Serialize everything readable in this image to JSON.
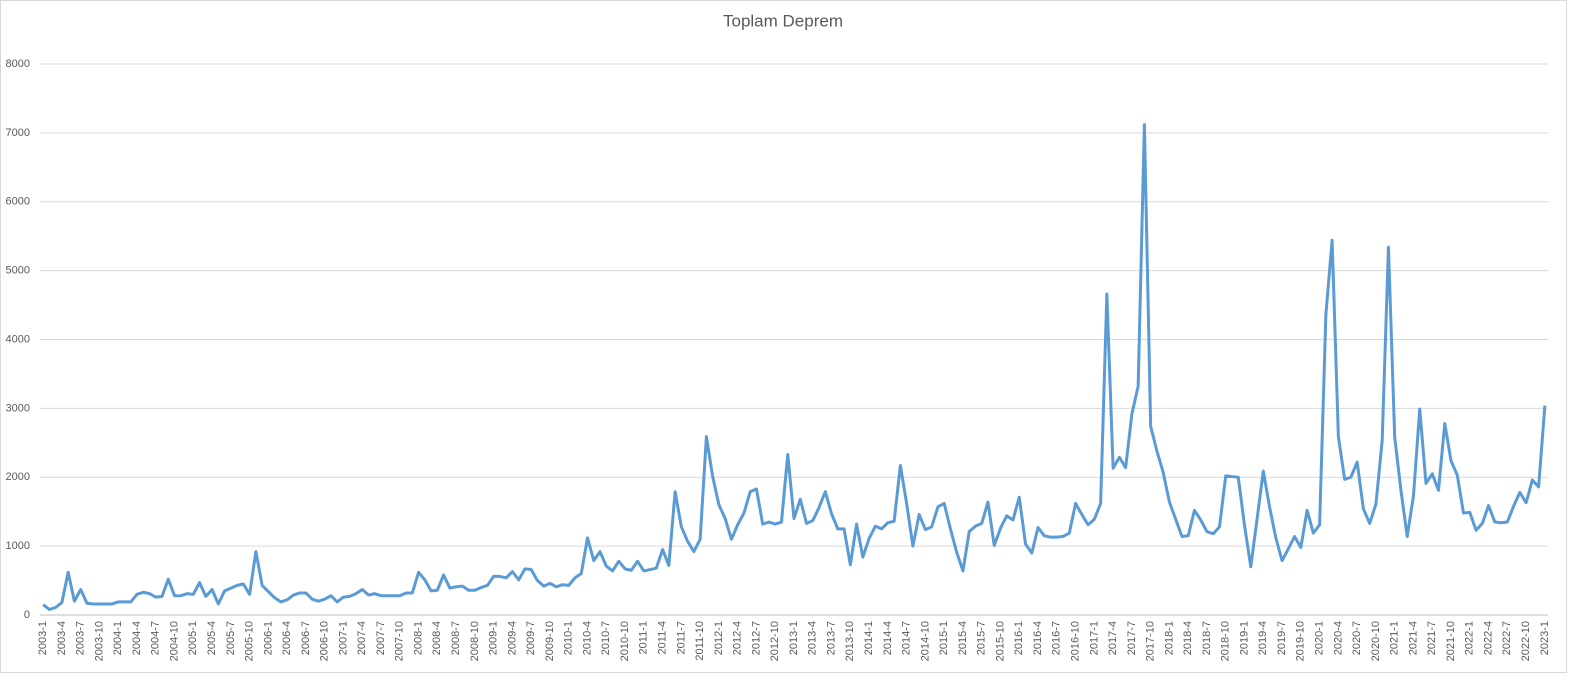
{
  "chart_data": {
    "type": "line",
    "title": "Toplam Deprem",
    "categories": [
      "2003-1",
      null,
      null,
      "2003-4",
      null,
      null,
      "2003-7",
      null,
      null,
      "2003-10",
      null,
      null,
      "2004-1",
      null,
      null,
      "2004-4",
      null,
      null,
      "2004-7",
      null,
      null,
      "2004-10",
      null,
      null,
      "2005-1",
      null,
      null,
      "2005-4",
      null,
      null,
      "2005-7",
      null,
      null,
      "2005-10",
      null,
      null,
      "2006-1",
      null,
      null,
      "2006-4",
      null,
      null,
      "2006-7",
      null,
      null,
      "2006-10",
      null,
      null,
      "2007-1",
      null,
      null,
      "2007-4",
      null,
      null,
      "2007-7",
      null,
      null,
      "2007-10",
      null,
      null,
      "2008-1",
      null,
      null,
      "2008-4",
      null,
      null,
      "2008-7",
      null,
      null,
      "2008-10",
      null,
      null,
      "2009-1",
      null,
      null,
      "2009-4",
      null,
      null,
      "2009-7",
      null,
      null,
      "2009-10",
      null,
      null,
      "2010-1",
      null,
      null,
      "2010-4",
      null,
      null,
      "2010-7",
      null,
      null,
      "2010-10",
      null,
      null,
      "2011-1",
      null,
      null,
      "2011-4",
      null,
      null,
      "2011-7",
      null,
      null,
      "2011-10",
      null,
      null,
      "2012-1",
      null,
      null,
      "2012-4",
      null,
      null,
      "2012-7",
      null,
      null,
      "2012-10",
      null,
      null,
      "2013-1",
      null,
      null,
      "2013-4",
      null,
      null,
      "2013-7",
      null,
      null,
      "2013-10",
      null,
      null,
      "2014-1",
      null,
      null,
      "2014-4",
      null,
      null,
      "2014-7",
      null,
      null,
      "2014-10",
      null,
      null,
      "2015-1",
      null,
      null,
      "2015-4",
      null,
      null,
      "2015-7",
      null,
      null,
      "2015-10",
      null,
      null,
      "2016-1",
      null,
      null,
      "2016-4",
      null,
      null,
      "2016-7",
      null,
      null,
      "2016-10",
      null,
      null,
      "2017-1",
      null,
      null,
      "2017-4",
      null,
      null,
      "2017-7",
      null,
      null,
      "2017-10",
      null,
      null,
      "2018-1",
      null,
      null,
      "2018-4",
      null,
      null,
      "2018-7",
      null,
      null,
      "2018-10",
      null,
      null,
      "2019-1",
      null,
      null,
      "2019-4",
      null,
      null,
      "2019-7",
      null,
      null,
      "2019-10",
      null,
      null,
      "2020-1",
      null,
      null,
      "2020-4",
      null,
      null,
      "2020-7",
      null,
      null,
      "2020-10",
      null,
      null,
      "2021-1",
      null,
      null,
      "2021-4",
      null,
      null,
      "2021-7",
      null,
      null,
      "2021-10",
      null,
      null,
      "2022-1",
      null,
      null,
      "2022-4",
      null,
      null,
      "2022-7",
      null,
      null,
      "2022-10",
      null,
      null,
      "2023-1"
    ],
    "values": [
      150,
      80,
      110,
      180,
      620,
      200,
      370,
      170,
      160,
      160,
      160,
      160,
      190,
      190,
      190,
      300,
      330,
      310,
      260,
      270,
      520,
      280,
      280,
      310,
      300,
      470,
      270,
      370,
      160,
      350,
      390,
      430,
      450,
      300,
      920,
      430,
      340,
      250,
      190,
      220,
      290,
      320,
      320,
      230,
      200,
      230,
      280,
      190,
      260,
      270,
      310,
      370,
      290,
      310,
      280,
      280,
      280,
      280,
      320,
      320,
      620,
      510,
      350,
      360,
      580,
      390,
      410,
      420,
      360,
      360,
      400,
      430,
      560,
      560,
      540,
      630,
      510,
      670,
      660,
      500,
      420,
      460,
      410,
      440,
      430,
      540,
      600,
      1120,
      790,
      920,
      710,
      640,
      780,
      670,
      650,
      780,
      640,
      660,
      680,
      950,
      720,
      1790,
      1280,
      1070,
      920,
      1100,
      2590,
      2010,
      1600,
      1400,
      1100,
      1310,
      1480,
      1790,
      1830,
      1320,
      1350,
      1320,
      1350,
      2330,
      1400,
      1680,
      1330,
      1370,
      1560,
      1790,
      1470,
      1250,
      1250,
      730,
      1320,
      840,
      1110,
      1290,
      1250,
      1340,
      1360,
      2170,
      1620,
      1000,
      1460,
      1240,
      1280,
      1570,
      1620,
      1250,
      910,
      640,
      1210,
      1290,
      1330,
      1640,
      1010,
      1260,
      1440,
      1380,
      1710,
      1030,
      900,
      1270,
      1150,
      1130,
      1130,
      1140,
      1190,
      1620,
      1460,
      1310,
      1390,
      1620,
      4660,
      2130,
      2290,
      2140,
      2920,
      3320,
      7120,
      2740,
      2380,
      2070,
      1640,
      1390,
      1140,
      1150,
      1520,
      1380,
      1210,
      1180,
      1280,
      2020,
      2010,
      2000,
      1300,
      700,
      1390,
      2090,
      1570,
      1120,
      790,
      960,
      1140,
      980,
      1520,
      1190,
      1310,
      4360,
      5440,
      2590,
      1970,
      2000,
      2220,
      1540,
      1330,
      1610,
      2530,
      5340,
      2580,
      1810,
      1140,
      1730,
      2990,
      1910,
      2050,
      1810,
      2780,
      2240,
      2030,
      1480,
      1490,
      1230,
      1330,
      1590,
      1350,
      1340,
      1350,
      1580,
      1780,
      1630,
      1960,
      1860,
      3040
    ],
    "color": "#5b9bd5",
    "ylim": [
      0,
      8000
    ],
    "yticks": [
      0,
      1000,
      2000,
      3000,
      4000,
      5000,
      6000,
      7000,
      8000
    ],
    "grid": true
  }
}
